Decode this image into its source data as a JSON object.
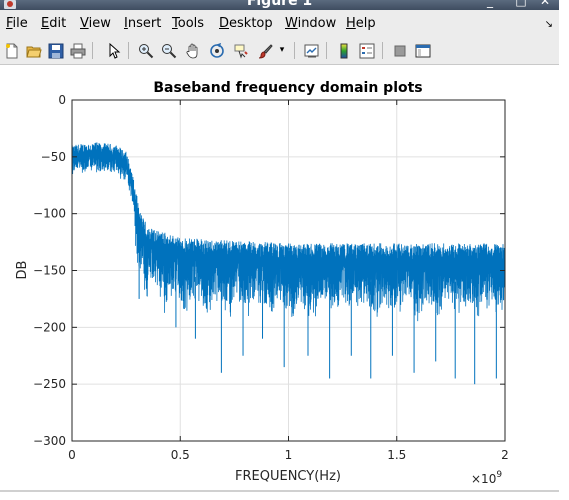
{
  "window": {
    "title": "Figure 1"
  },
  "menubar": {
    "items": [
      {
        "label": "File",
        "mnemonic": "F",
        "rest": "ile"
      },
      {
        "label": "Edit",
        "mnemonic": "E",
        "rest": "dit"
      },
      {
        "label": "View",
        "mnemonic": "V",
        "rest": "iew"
      },
      {
        "label": "Insert",
        "mnemonic": "I",
        "rest": "nsert"
      },
      {
        "label": "Tools",
        "mnemonic": "T",
        "rest": "ools"
      },
      {
        "label": "Desktop",
        "mnemonic": "D",
        "rest": "esktop"
      },
      {
        "label": "Window",
        "mnemonic": "W",
        "rest": "indow"
      },
      {
        "label": "Help",
        "mnemonic": "H",
        "rest": "elp"
      }
    ]
  },
  "toolbar": {
    "icons": [
      "new-figure-icon",
      "open-file-icon",
      "save-icon",
      "print-icon",
      "edit-plot-arrow-icon",
      "zoom-in-icon",
      "zoom-out-icon",
      "pan-hand-icon",
      "rotate-3d-icon",
      "data-cursor-icon",
      "brush-icon",
      "link-plot-icon",
      "colorbar-icon",
      "legend-icon",
      "hide-plot-tools-icon",
      "show-plot-tools-icon"
    ]
  },
  "colors": {
    "line": "#0072bd",
    "grid": "#e0e0e0",
    "menubar": "#ececec"
  },
  "chart_data": {
    "type": "line",
    "title": "Baseband frequency domain plots",
    "xlabel": "FREQUENCY(Hz)",
    "ylabel": "DB",
    "x_exponent_label": "×10",
    "x_exponent_power": "9",
    "xlim": [
      0,
      2
    ],
    "ylim": [
      -300,
      0
    ],
    "x_ticks": [
      0,
      0.5,
      1,
      1.5,
      2
    ],
    "x_tick_labels": [
      "0",
      "0.5",
      "1",
      "1.5",
      "2"
    ],
    "y_ticks": [
      0,
      -50,
      -100,
      -150,
      -200,
      -250,
      -300
    ],
    "y_tick_labels": [
      "0",
      "−50",
      "−100",
      "−150",
      "−200",
      "−250",
      "−300"
    ],
    "grid": true,
    "series": [
      {
        "envelope_x": [
          0,
          0.05,
          0.1,
          0.15,
          0.2,
          0.25,
          0.28,
          0.31,
          0.35,
          0.5,
          1.0,
          1.5,
          2.0
        ],
        "envelope_y": [
          -50,
          -48,
          -47,
          -48,
          -49,
          -55,
          -75,
          -110,
          -125,
          -135,
          -140,
          -140,
          -140
        ],
        "deep_nulls": [
          {
            "x": 0.31,
            "y": -175
          },
          {
            "x": 0.48,
            "y": -200
          },
          {
            "x": 0.57,
            "y": -210
          },
          {
            "x": 0.69,
            "y": -240
          },
          {
            "x": 0.79,
            "y": -225
          },
          {
            "x": 0.88,
            "y": -210
          },
          {
            "x": 0.98,
            "y": -235
          },
          {
            "x": 1.09,
            "y": -225
          },
          {
            "x": 1.19,
            "y": -245
          },
          {
            "x": 1.29,
            "y": -225
          },
          {
            "x": 1.38,
            "y": -245
          },
          {
            "x": 1.48,
            "y": -225
          },
          {
            "x": 1.58,
            "y": -240
          },
          {
            "x": 1.68,
            "y": -230
          },
          {
            "x": 1.77,
            "y": -245
          },
          {
            "x": 1.86,
            "y": -250
          },
          {
            "x": 1.96,
            "y": -245
          }
        ]
      }
    ]
  }
}
